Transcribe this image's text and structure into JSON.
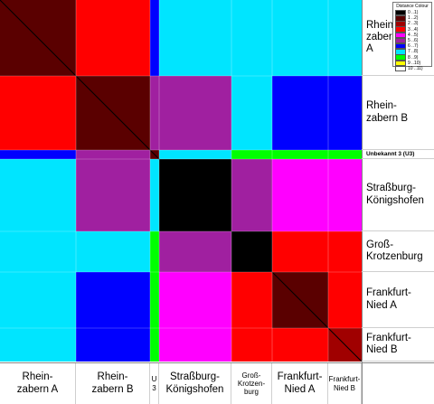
{
  "chart_data": {
    "type": "heatmap",
    "groups": [
      {
        "row_label": "Rhein-\nzabern\nA",
        "col_label": "Rhein-\nzabern A",
        "size": 84
      },
      {
        "row_label": "Rhein-\nzabern B",
        "col_label": "Rhein-\nzabern B",
        "size": 82
      },
      {
        "row_label": "Unbekannt 3 (U3)",
        "col_label": "U\n3",
        "size": 10
      },
      {
        "row_label": "Straßburg-\nKönigshofen",
        "col_label": "Straßburg-\nKönigshofen",
        "size": 80
      },
      {
        "row_label": "Groß-\nKrotzenburg",
        "col_label": "Groß-\nKrotzen-\nburg",
        "size": 45
      },
      {
        "row_label": "Frankfurt-\nNied A",
        "col_label": "Frankfurt-\nNied A",
        "size": 62
      },
      {
        "row_label": "Frankfurt-\nNied B",
        "col_label": "Frankfurt-\nNied B",
        "size": 37
      }
    ],
    "legend": {
      "title": "Distance Colour",
      "entries": [
        "0 ..1)",
        "1 ..2)",
        "2 ..3)",
        "3 ..4)",
        "4 ..5)",
        "5 ..6)",
        "6 ..7)",
        "7 ..8)",
        "8 ..9)",
        "9 ..10)",
        "10 ..11)"
      ],
      "colors": [
        "#000000",
        "#5a0000",
        "#a00000",
        "#ff0000",
        "#ff00ff",
        "#a020a0",
        "#0000ff",
        "#00e5ff",
        "#00ff00",
        "#ffff00",
        "#ffffff"
      ]
    },
    "block_distance_levels": [
      [
        1,
        3,
        6,
        7,
        7,
        7,
        7
      ],
      [
        3,
        1,
        5,
        5,
        7,
        6,
        6
      ],
      [
        6,
        5,
        1,
        7,
        8,
        8,
        8
      ],
      [
        7,
        5,
        7,
        0,
        5,
        4,
        4
      ],
      [
        7,
        7,
        8,
        5,
        0,
        3,
        3
      ],
      [
        7,
        6,
        8,
        4,
        3,
        1,
        3
      ],
      [
        7,
        6,
        8,
        4,
        3,
        3,
        2
      ]
    ]
  }
}
